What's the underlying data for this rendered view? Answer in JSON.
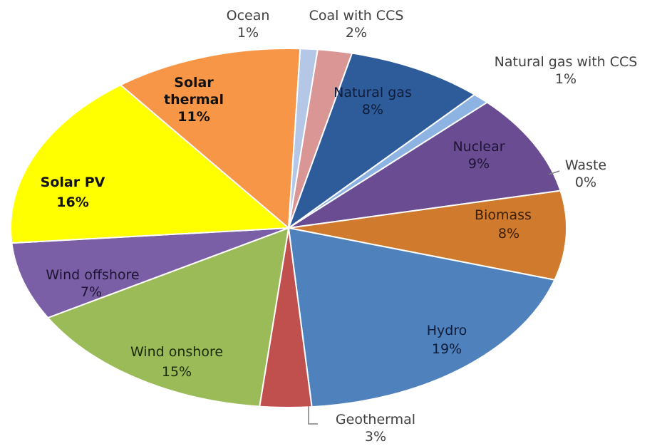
{
  "chart_data": {
    "type": "pie",
    "slices": [
      {
        "label": "Coal with CCS",
        "value": 2,
        "value_label": "2%",
        "color": "#d99694"
      },
      {
        "label": "Natural gas",
        "value": 8,
        "value_label": "8%",
        "color": "#2e5c9a"
      },
      {
        "label": "Natural gas with CCS",
        "value": 1,
        "value_label": "1%",
        "color": "#8db3e2"
      },
      {
        "label": "Nuclear",
        "value": 9,
        "value_label": "9%",
        "color": "#6a4c93"
      },
      {
        "label": "Waste",
        "value": 0,
        "value_label": "0%",
        "color": "#ffffff"
      },
      {
        "label": "Biomass",
        "value": 8,
        "value_label": "8%",
        "color": "#d07a2e"
      },
      {
        "label": "Hydro",
        "value": 19,
        "value_label": "19%",
        "color": "#4f81bd"
      },
      {
        "label": "Geothermal",
        "value": 3,
        "value_label": "3%",
        "color": "#c0504d"
      },
      {
        "label": "Wind onshore",
        "value": 15,
        "value_label": "15%",
        "color": "#9bbb59"
      },
      {
        "label": "Wind offshore",
        "value": 7,
        "value_label": "7%",
        "color": "#7b5fa6"
      },
      {
        "label": "Solar PV",
        "value": 16,
        "value_label": "16%",
        "color": "#ffff00"
      },
      {
        "label": "Solar thermal",
        "value": 11,
        "value_label": "11%",
        "color": "#f79646"
      },
      {
        "label": "Ocean",
        "value": 1,
        "value_label": "1%",
        "color": "#b4c7e7"
      }
    ]
  }
}
